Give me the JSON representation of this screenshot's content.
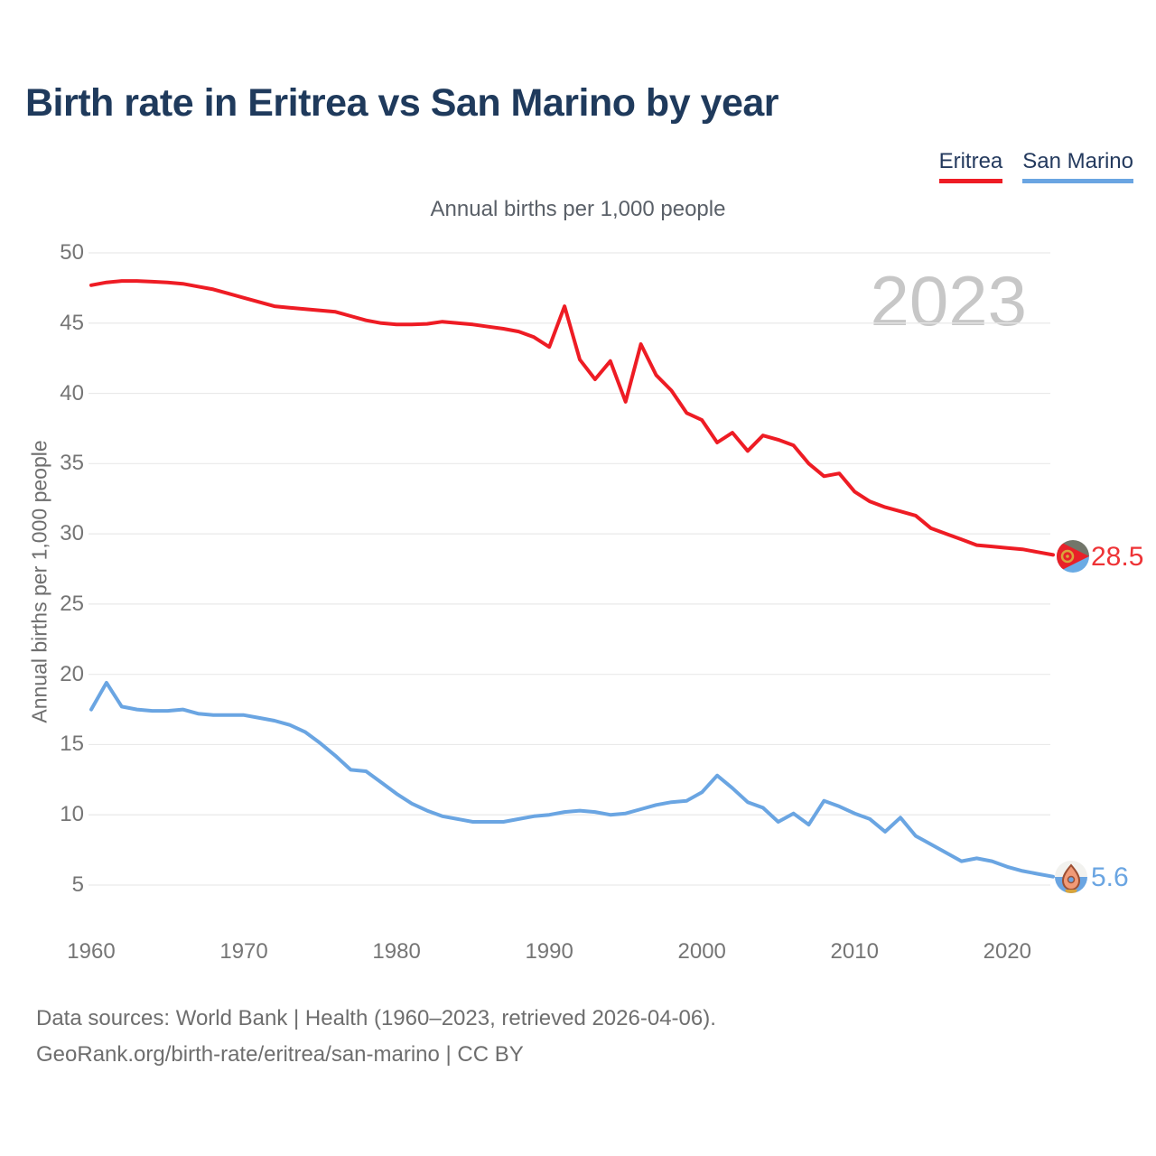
{
  "title": "Birth rate in Eritrea vs San Marino by year",
  "subtitle": "Annual births per 1,000 people",
  "watermark": "2023",
  "y_axis_title": "Annual births per 1,000 people",
  "legend": [
    {
      "label": "Eritrea",
      "color": "#ee1c24"
    },
    {
      "label": "San Marino",
      "color": "#6aa5e2"
    }
  ],
  "icons": {
    "eritrea_flag": "eritrea-flag-icon",
    "san_marino_flag": "san-marino-flag-icon"
  },
  "colors": {
    "eritrea": "#ee1c24",
    "san_marino": "#6aa5e2",
    "grid": "#e9e9e9",
    "axis_text": "#757575",
    "title_text": "#1f3a5c",
    "watermark_text": "#c7c7c7",
    "footer_text": "#6e6e6e"
  },
  "end_labels": {
    "eritrea": "28.5",
    "san_marino": "5.6"
  },
  "footer": {
    "line1": "Data sources: World Bank | Health (1960–2023, retrieved 2026-04-06).",
    "line2": "GeoRank.org/birth-rate/eritrea/san-marino | CC BY"
  },
  "chart_data": {
    "type": "line",
    "title": "Annual births per 1,000 people",
    "xlabel": "",
    "ylabel": "Annual births per 1,000 people",
    "ylim": [
      5,
      50
    ],
    "yticks": [
      50,
      45,
      40,
      35,
      30,
      25,
      20,
      15,
      10,
      5
    ],
    "xticks": [
      1960,
      1970,
      1980,
      1990,
      2000,
      2010,
      2020
    ],
    "grid": "horizontal",
    "legend_position": "top-right",
    "x": [
      1960,
      1961,
      1962,
      1963,
      1964,
      1965,
      1966,
      1967,
      1968,
      1969,
      1970,
      1971,
      1972,
      1973,
      1974,
      1975,
      1976,
      1977,
      1978,
      1979,
      1980,
      1981,
      1982,
      1983,
      1984,
      1985,
      1986,
      1987,
      1988,
      1989,
      1990,
      1991,
      1992,
      1993,
      1994,
      1995,
      1996,
      1997,
      1998,
      1999,
      2000,
      2001,
      2002,
      2003,
      2004,
      2005,
      2006,
      2007,
      2008,
      2009,
      2010,
      2011,
      2012,
      2013,
      2014,
      2015,
      2016,
      2017,
      2018,
      2019,
      2020,
      2021,
      2022,
      2023
    ],
    "series": [
      {
        "name": "Eritrea",
        "color": "#ee1c24",
        "end_label": "28.5",
        "values": [
          47.7,
          47.9,
          48.0,
          48.0,
          47.95,
          47.9,
          47.8,
          47.6,
          47.4,
          47.1,
          46.8,
          46.5,
          46.2,
          46.1,
          46.0,
          45.9,
          45.8,
          45.5,
          45.2,
          45.0,
          44.9,
          44.9,
          44.95,
          45.1,
          45.0,
          44.9,
          44.75,
          44.6,
          44.4,
          44.0,
          43.3,
          46.2,
          42.4,
          41.0,
          42.3,
          39.4,
          43.5,
          41.3,
          40.2,
          38.6,
          38.1,
          36.5,
          37.2,
          35.9,
          37.0,
          36.7,
          36.3,
          35.0,
          34.1,
          34.3,
          33.0,
          32.3,
          31.9,
          31.6,
          31.3,
          30.4,
          30.0,
          29.6,
          29.2,
          29.1,
          29.0,
          28.9,
          28.7,
          28.5
        ]
      },
      {
        "name": "San Marino",
        "color": "#6aa5e2",
        "end_label": "5.6",
        "values": [
          17.5,
          19.4,
          17.7,
          17.5,
          17.4,
          17.4,
          17.5,
          17.2,
          17.1,
          17.1,
          17.1,
          16.9,
          16.7,
          16.4,
          15.9,
          15.1,
          14.2,
          13.2,
          13.1,
          12.3,
          11.5,
          10.8,
          10.3,
          9.9,
          9.7,
          9.5,
          9.5,
          9.5,
          9.7,
          9.9,
          10.0,
          10.2,
          10.3,
          10.2,
          10.0,
          10.1,
          10.4,
          10.7,
          10.9,
          11.0,
          11.6,
          12.8,
          11.9,
          10.9,
          10.5,
          9.5,
          10.1,
          9.3,
          11.0,
          10.6,
          10.1,
          9.7,
          8.8,
          9.8,
          8.5,
          7.9,
          7.3,
          6.7,
          6.9,
          6.7,
          6.3,
          6.0,
          5.8,
          5.6
        ]
      }
    ]
  }
}
